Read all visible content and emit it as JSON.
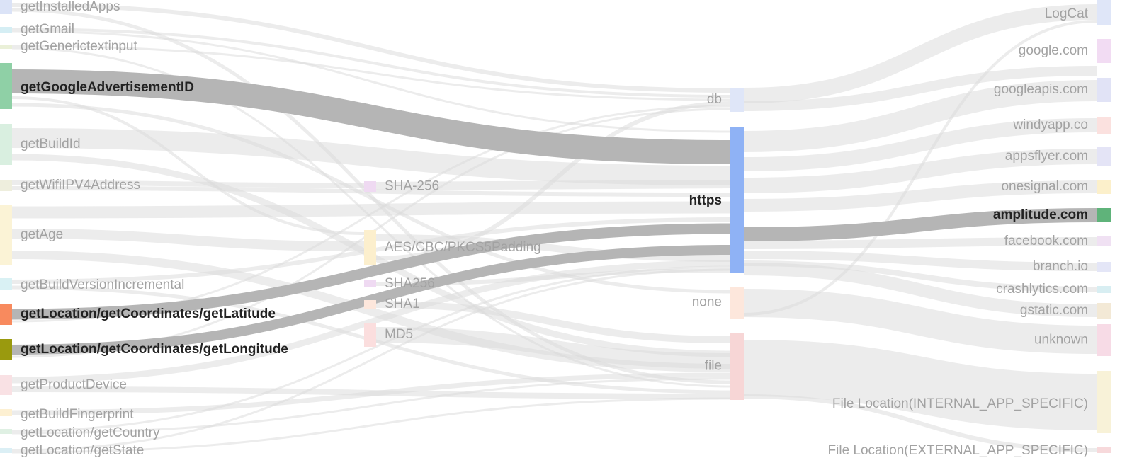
{
  "diagram": {
    "type": "sankey",
    "columns": [
      {
        "name": "sources",
        "nodes": [
          {
            "id": "getInstalledApps",
            "label": "getInstalledApps",
            "color": "#dbe3f7",
            "highlighted": false
          },
          {
            "id": "getGmail",
            "label": "getGmail",
            "color": "#d5eef4",
            "highlighted": false
          },
          {
            "id": "getGenerictextinput",
            "label": "getGenerictextinput",
            "color": "#eaf0d8",
            "highlighted": false
          },
          {
            "id": "getGoogleAdvertisementID",
            "label": "getGoogleAdvertisementID",
            "color": "#8fd0a6",
            "highlighted": true
          },
          {
            "id": "getBuildId",
            "label": "getBuildId",
            "color": "#d9efe0",
            "highlighted": false
          },
          {
            "id": "getWifiIPV4Address",
            "label": "getWifiIPV4Address",
            "color": "#eeeedd",
            "highlighted": false
          },
          {
            "id": "getAge",
            "label": "getAge",
            "color": "#fbf3d6",
            "highlighted": false
          },
          {
            "id": "getBuildVersionIncremental",
            "label": "getBuildVersionIncremental",
            "color": "#d9f1f4",
            "highlighted": false
          },
          {
            "id": "getLatitude",
            "label": "getLocation/getCoordinates/getLatitude",
            "color": "#f88a5e",
            "highlighted": true
          },
          {
            "id": "getLongitude",
            "label": "getLocation/getCoordinates/getLongitude",
            "color": "#9a9a0e",
            "highlighted": true
          },
          {
            "id": "getProductDevice",
            "label": "getProductDevice",
            "color": "#f9e1e4",
            "highlighted": false
          },
          {
            "id": "getBuildFingerprint",
            "label": "getBuildFingerprint",
            "color": "#fdf0d2",
            "highlighted": false
          },
          {
            "id": "getCountry",
            "label": "getLocation/getCountry",
            "color": "#dff0e3",
            "highlighted": false
          },
          {
            "id": "getState",
            "label": "getLocation/getState",
            "color": "#dbeff5",
            "highlighted": false
          }
        ]
      },
      {
        "name": "encryption",
        "nodes": [
          {
            "id": "SHA-256",
            "label": "SHA-256",
            "color": "#efdaf2",
            "highlighted": false
          },
          {
            "id": "AES",
            "label": "AES/CBC/PKCS5Padding",
            "color": "#fcefcd",
            "highlighted": false
          },
          {
            "id": "SHA256",
            "label": "SHA256",
            "color": "#efdaf2",
            "highlighted": false
          },
          {
            "id": "SHA1",
            "label": "SHA1",
            "color": "#fde7dc",
            "highlighted": false
          },
          {
            "id": "MD5",
            "label": "MD5",
            "color": "#fbdede",
            "highlighted": false
          }
        ]
      },
      {
        "name": "channels",
        "nodes": [
          {
            "id": "db",
            "label": "db",
            "color": "#dfe6f8",
            "highlighted": false
          },
          {
            "id": "https",
            "label": "https",
            "color": "#8fb2f5",
            "highlighted": true
          },
          {
            "id": "none",
            "label": "none",
            "color": "#fde7dc",
            "highlighted": false
          },
          {
            "id": "file",
            "label": "file",
            "color": "#f7d6d6",
            "highlighted": false
          }
        ]
      },
      {
        "name": "destinations",
        "nodes": [
          {
            "id": "LogCat",
            "label": "LogCat",
            "color": "#dfe6f8",
            "highlighted": false
          },
          {
            "id": "google.com",
            "label": "google.com",
            "color": "#f2dcf3",
            "highlighted": false
          },
          {
            "id": "googleapis.com",
            "label": "googleapis.com",
            "color": "#e1e3f6",
            "highlighted": false
          },
          {
            "id": "windyapp.co",
            "label": "windyapp.co",
            "color": "#fbe1df",
            "highlighted": false
          },
          {
            "id": "appsflyer.com",
            "label": "appsflyer.com",
            "color": "#e4e4f6",
            "highlighted": false
          },
          {
            "id": "onesignal.com",
            "label": "onesignal.com",
            "color": "#fcf0cb",
            "highlighted": false
          },
          {
            "id": "amplitude.com",
            "label": "amplitude.com",
            "color": "#5fb37a",
            "highlighted": true
          },
          {
            "id": "facebook.com",
            "label": "facebook.com",
            "color": "#f0e1f3",
            "highlighted": false
          },
          {
            "id": "branch.io",
            "label": "branch.io",
            "color": "#e4e6f7",
            "highlighted": false
          },
          {
            "id": "crashlytics.com",
            "label": "crashlytics.com",
            "color": "#d8eef2",
            "highlighted": false
          },
          {
            "id": "gstatic.com",
            "label": "gstatic.com",
            "color": "#f3e9d6",
            "highlighted": false
          },
          {
            "id": "unknown",
            "label": "unknown",
            "color": "#f7dbe6",
            "highlighted": false
          },
          {
            "id": "internal",
            "label": "File Location(INTERNAL_APP_SPECIFIC)",
            "color": "#f8f2d8",
            "highlighted": false
          },
          {
            "id": "external",
            "label": "File Location(EXTERNAL_APP_SPECIFIC)",
            "color": "#f7d9db",
            "highlighted": false
          }
        ]
      }
    ],
    "links": [
      {
        "source": "getGoogleAdvertisementID",
        "target": "https",
        "highlighted": true
      },
      {
        "source": "getLatitude",
        "target": "https",
        "highlighted": true
      },
      {
        "source": "getLongitude",
        "target": "https",
        "highlighted": true
      },
      {
        "source": "https",
        "target": "amplitude.com",
        "highlighted": true
      },
      {
        "source": "getInstalledApps",
        "target": "db",
        "highlighted": false
      },
      {
        "source": "getInstalledApps",
        "target": "file",
        "highlighted": false
      },
      {
        "source": "getGmail",
        "target": "db",
        "highlighted": false
      },
      {
        "source": "getGmail",
        "target": "https",
        "highlighted": false
      },
      {
        "source": "getGenerictextinput",
        "target": "db",
        "highlighted": false
      },
      {
        "source": "getGenerictextinput",
        "target": "file",
        "highlighted": false
      },
      {
        "source": "getGoogleAdvertisementID",
        "target": "AES",
        "highlighted": false
      },
      {
        "source": "getGoogleAdvertisementID",
        "target": "none",
        "highlighted": false
      },
      {
        "source": "getBuildId",
        "target": "https",
        "highlighted": false
      },
      {
        "source": "getBuildId",
        "target": "file",
        "highlighted": false
      },
      {
        "source": "getWifiIPV4Address",
        "target": "SHA-256",
        "highlighted": false
      },
      {
        "source": "getWifiIPV4Address",
        "target": "https",
        "highlighted": false
      },
      {
        "source": "getAge",
        "target": "https",
        "highlighted": false
      },
      {
        "source": "getAge",
        "target": "AES",
        "highlighted": false
      },
      {
        "source": "getAge",
        "target": "file",
        "highlighted": false
      },
      {
        "source": "getBuildVersionIncremental",
        "target": "https",
        "highlighted": false
      },
      {
        "source": "getBuildVersionIncremental",
        "target": "file",
        "highlighted": false
      },
      {
        "source": "getLatitude",
        "target": "db",
        "highlighted": false
      },
      {
        "source": "getLongitude",
        "target": "db",
        "highlighted": false
      },
      {
        "source": "getProductDevice",
        "target": "https",
        "highlighted": false
      },
      {
        "source": "getProductDevice",
        "target": "file",
        "highlighted": false
      },
      {
        "source": "getBuildFingerprint",
        "target": "file",
        "highlighted": false
      },
      {
        "source": "getCountry",
        "target": "https",
        "highlighted": false
      },
      {
        "source": "getCountry",
        "target": "file",
        "highlighted": false
      },
      {
        "source": "getState",
        "target": "https",
        "highlighted": false
      },
      {
        "source": "getState",
        "target": "file",
        "highlighted": false
      },
      {
        "source": "SHA-256",
        "target": "https",
        "highlighted": false
      },
      {
        "source": "AES",
        "target": "https",
        "highlighted": false
      },
      {
        "source": "AES",
        "target": "db",
        "highlighted": false
      },
      {
        "source": "SHA256",
        "target": "https",
        "highlighted": false
      },
      {
        "source": "SHA1",
        "target": "file",
        "highlighted": false
      },
      {
        "source": "MD5",
        "target": "file",
        "highlighted": false
      },
      {
        "source": "db",
        "target": "LogCat",
        "highlighted": false
      },
      {
        "source": "db",
        "target": "google.com",
        "highlighted": false
      },
      {
        "source": "https",
        "target": "googleapis.com",
        "highlighted": false
      },
      {
        "source": "https",
        "target": "windyapp.co",
        "highlighted": false
      },
      {
        "source": "https",
        "target": "appsflyer.com",
        "highlighted": false
      },
      {
        "source": "https",
        "target": "onesignal.com",
        "highlighted": false
      },
      {
        "source": "https",
        "target": "facebook.com",
        "highlighted": false
      },
      {
        "source": "https",
        "target": "branch.io",
        "highlighted": false
      },
      {
        "source": "https",
        "target": "crashlytics.com",
        "highlighted": false
      },
      {
        "source": "https",
        "target": "gstatic.com",
        "highlighted": false
      },
      {
        "source": "none",
        "target": "unknown",
        "highlighted": false
      },
      {
        "source": "none",
        "target": "LogCat",
        "highlighted": false
      },
      {
        "source": "file",
        "target": "internal",
        "highlighted": false
      },
      {
        "source": "file",
        "target": "external",
        "highlighted": false
      }
    ]
  }
}
